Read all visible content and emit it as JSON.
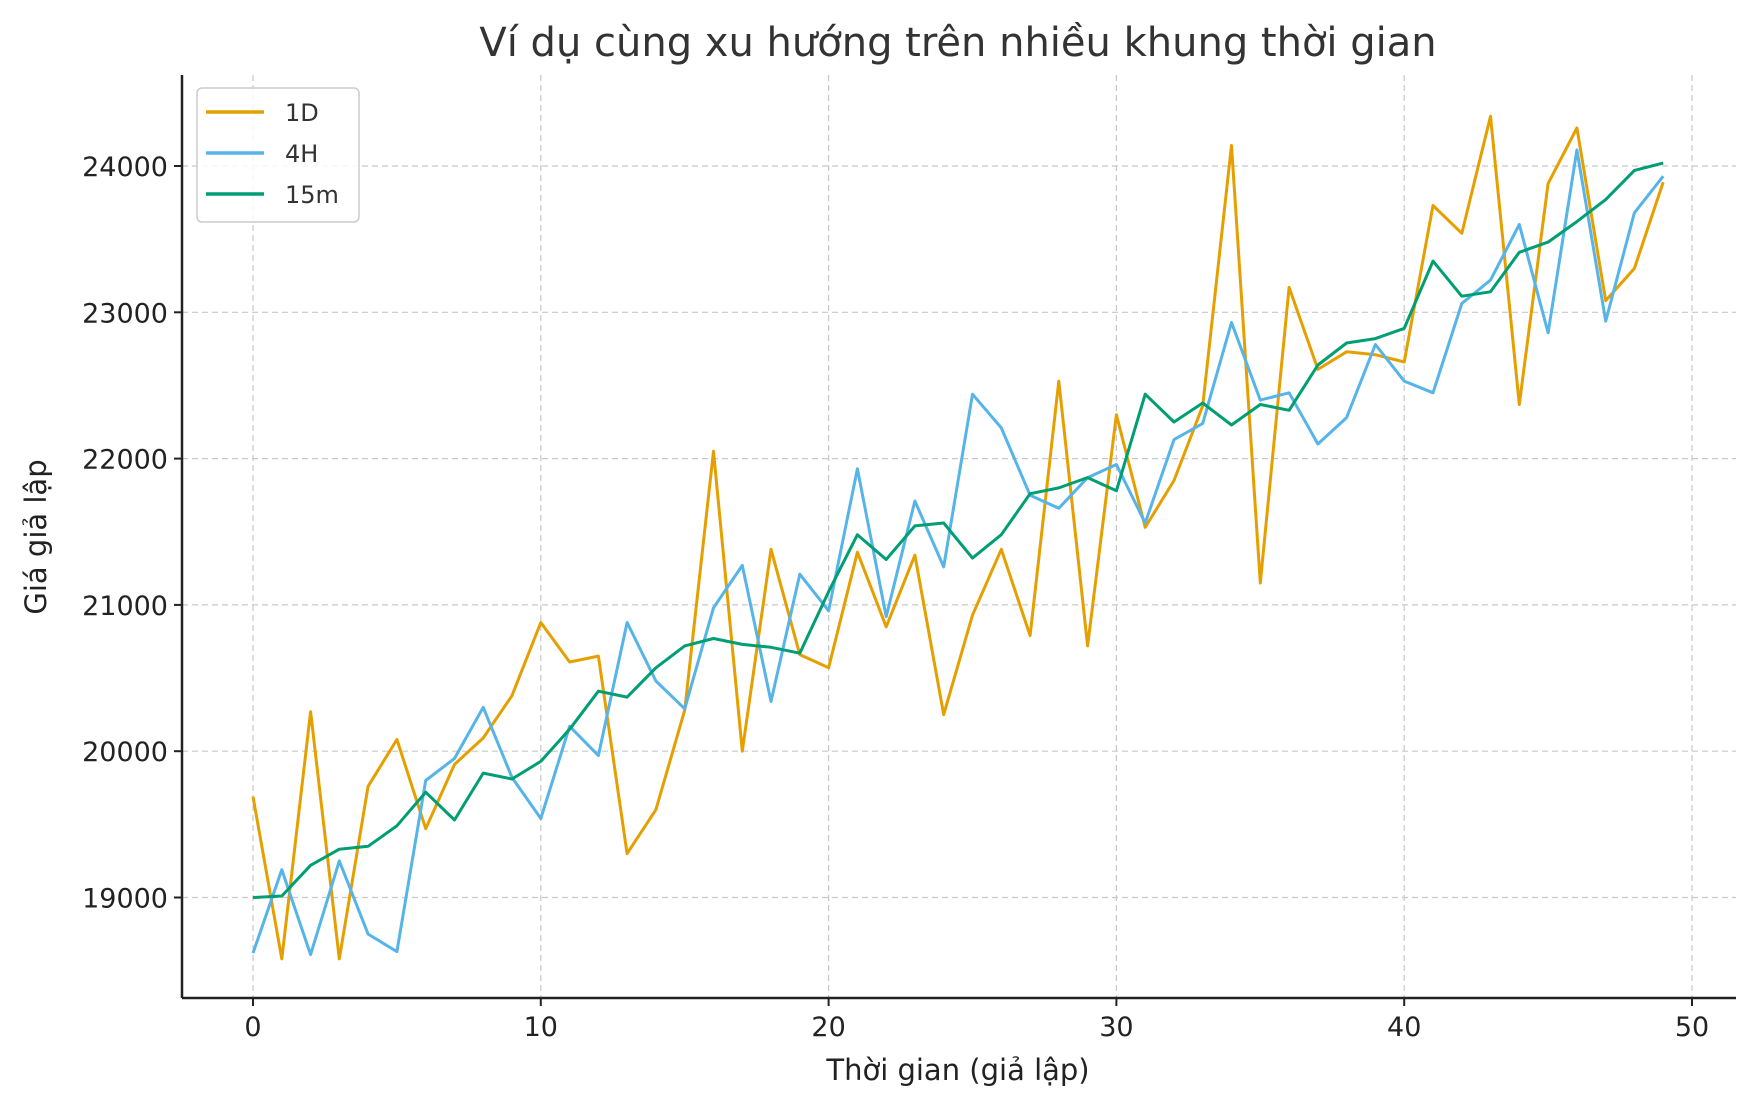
{
  "chart_data": {
    "type": "line",
    "title": "Ví dụ cùng xu hướng trên nhiều khung thời gian",
    "xlabel": "Thời gian (giả lập)",
    "ylabel": "Giá giả lập",
    "xlim": [
      -2.5,
      51.5
    ],
    "ylim": [
      18300,
      24620
    ],
    "xticks": [
      0,
      10,
      20,
      30,
      40,
      50
    ],
    "yticks": [
      19000,
      20000,
      21000,
      22000,
      23000,
      24000
    ],
    "grid": true,
    "legend_position": "upper left",
    "x": [
      0,
      1,
      2,
      3,
      4,
      5,
      6,
      7,
      8,
      9,
      10,
      11,
      12,
      13,
      14,
      15,
      16,
      17,
      18,
      19,
      20,
      21,
      22,
      23,
      24,
      25,
      26,
      27,
      28,
      29,
      30,
      31,
      32,
      33,
      34,
      35,
      36,
      37,
      38,
      39,
      40,
      41,
      42,
      43,
      44,
      45,
      46,
      47,
      48,
      49
    ],
    "series": [
      {
        "name": "1D",
        "color": "#E69F00",
        "values": [
          19690,
          18580,
          20270,
          18580,
          19760,
          20080,
          19470,
          19910,
          20090,
          20380,
          20880,
          20610,
          20650,
          19300,
          19600,
          20280,
          22050,
          20000,
          21380,
          20660,
          20570,
          21360,
          20850,
          21340,
          20250,
          20930,
          21380,
          20790,
          22530,
          20720,
          22300,
          21530,
          21850,
          22360,
          24140,
          21150,
          23170,
          22610,
          22730,
          22710,
          22660,
          23730,
          23540,
          24340,
          22370,
          23880,
          24260,
          23080,
          23300,
          23890
        ]
      },
      {
        "name": "4H",
        "color": "#56B4E9",
        "values": [
          18620,
          19190,
          18610,
          19250,
          18750,
          18630,
          19800,
          19950,
          20300,
          19820,
          19540,
          20170,
          19970,
          20880,
          20480,
          20290,
          20980,
          21270,
          20340,
          21210,
          20960,
          21930,
          20920,
          21710,
          21260,
          22440,
          22210,
          21750,
          21660,
          21870,
          21960,
          21560,
          22130,
          22240,
          22930,
          22400,
          22450,
          22100,
          22280,
          22780,
          22530,
          22450,
          23060,
          23220,
          23600,
          22860,
          24110,
          22940,
          23680,
          23930
        ]
      },
      {
        "name": "15m",
        "color": "#009E73",
        "values": [
          19000,
          19010,
          19220,
          19330,
          19350,
          19490,
          19720,
          19530,
          19850,
          19810,
          19930,
          20150,
          20410,
          20370,
          20570,
          20720,
          20770,
          20730,
          20710,
          20670,
          21090,
          21480,
          21310,
          21540,
          21560,
          21320,
          21480,
          21760,
          21800,
          21870,
          21780,
          22440,
          22250,
          22380,
          22230,
          22370,
          22330,
          22640,
          22790,
          22820,
          22890,
          23350,
          23110,
          23140,
          23410,
          23480,
          23620,
          23770,
          23970,
          24020
        ]
      }
    ]
  }
}
